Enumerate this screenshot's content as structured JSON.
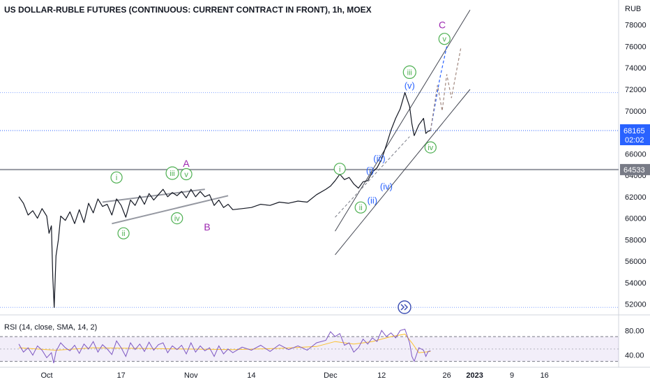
{
  "chart_data": {
    "type": "line",
    "title": "US DOLLAR-RUBLE FUTURES (CONTINUOUS: CURRENT CONTRACT IN FRONT), 1h, MOEX",
    "currency_label": "RUB",
    "y_ticks": [
      "78000",
      "76000",
      "74000",
      "72000",
      "70000",
      "68000",
      "66000",
      "64000",
      "62000",
      "60000",
      "58000",
      "56000",
      "54000",
      "52000"
    ],
    "ylim": [
      51200,
      79800
    ],
    "x_ticks": [
      {
        "label": "Oct",
        "day": 0
      },
      {
        "label": "17",
        "day": 16
      },
      {
        "label": "Nov",
        "day": 31
      },
      {
        "label": "14",
        "day": 44
      },
      {
        "label": "Dec",
        "day": 61
      },
      {
        "label": "12",
        "day": 72
      },
      {
        "label": "26",
        "day": 86
      },
      {
        "label": "2023",
        "day": 92
      },
      {
        "label": "9",
        "day": 100
      },
      {
        "label": "16",
        "day": 107
      }
    ],
    "current_price": {
      "value": "68165",
      "countdown": "02:02",
      "level": 68165
    },
    "marked_level": {
      "value": "64533",
      "level": 64533
    },
    "price_series": {
      "name": "",
      "points": [
        [
          -6,
          62000
        ],
        [
          -5,
          61400
        ],
        [
          -4,
          60300
        ],
        [
          -3,
          60700
        ],
        [
          -2,
          60000
        ],
        [
          -1,
          60900
        ],
        [
          0,
          60200
        ],
        [
          0.5,
          58600
        ],
        [
          1,
          59300
        ],
        [
          1.3,
          54500
        ],
        [
          1.6,
          51700
        ],
        [
          2,
          56500
        ],
        [
          2.5,
          58000
        ],
        [
          3,
          60200
        ],
        [
          4,
          59800
        ],
        [
          5,
          60600
        ],
        [
          6,
          59500
        ],
        [
          7,
          60800
        ],
        [
          8,
          59600
        ],
        [
          9,
          61400
        ],
        [
          10,
          60500
        ],
        [
          11,
          61800
        ],
        [
          12,
          61100
        ],
        [
          13,
          61300
        ],
        [
          14,
          60300
        ],
        [
          15,
          61800
        ],
        [
          16,
          61200
        ],
        [
          17,
          60100
        ],
        [
          18,
          61700
        ],
        [
          19,
          61200
        ],
        [
          20,
          62100
        ],
        [
          21,
          61300
        ],
        [
          22,
          62300
        ],
        [
          23,
          61700
        ],
        [
          24,
          62200
        ],
        [
          25,
          62700
        ],
        [
          26,
          62000
        ],
        [
          27,
          62400
        ],
        [
          28,
          62100
        ],
        [
          29,
          62500
        ],
        [
          30,
          61900
        ],
        [
          31,
          62700
        ],
        [
          32,
          62000
        ],
        [
          33,
          62500
        ],
        [
          34,
          62000
        ],
        [
          35,
          62200
        ],
        [
          36,
          61200
        ],
        [
          37,
          61700
        ],
        [
          38,
          61000
        ],
        [
          39,
          61300
        ],
        [
          40,
          60800
        ],
        [
          42,
          60900
        ],
        [
          44,
          61000
        ],
        [
          46,
          61300
        ],
        [
          48,
          61200
        ],
        [
          50,
          61500
        ],
        [
          52,
          61400
        ],
        [
          54,
          61600
        ],
        [
          56,
          61500
        ],
        [
          58,
          62200
        ],
        [
          60,
          62700
        ],
        [
          61,
          63000
        ],
        [
          62,
          63500
        ],
        [
          63,
          64100
        ],
        [
          64,
          63600
        ],
        [
          65,
          63800
        ],
        [
          66,
          63200
        ],
        [
          67,
          62800
        ],
        [
          68,
          63400
        ],
        [
          69,
          63500
        ],
        [
          70,
          64300
        ],
        [
          71,
          64700
        ],
        [
          72,
          65500
        ],
        [
          73,
          66800
        ],
        [
          74,
          68200
        ],
        [
          75,
          69300
        ],
        [
          76,
          70200
        ],
        [
          77,
          71700
        ],
        [
          78,
          70400
        ],
        [
          78.5,
          68800
        ],
        [
          79,
          67700
        ],
        [
          80,
          68700
        ],
        [
          81,
          69300
        ],
        [
          81.5,
          67900
        ],
        [
          82,
          68100
        ],
        [
          82.5,
          68165
        ]
      ]
    },
    "projections": [
      {
        "color": "#2962ff",
        "points": [
          [
            82.5,
            68165
          ],
          [
            84.5,
            73000
          ],
          [
            86,
            76000
          ]
        ]
      },
      {
        "color": "#a1887f",
        "points": [
          [
            82.5,
            68165
          ],
          [
            84,
            72400
          ],
          [
            85,
            70000
          ],
          [
            86,
            73400
          ],
          [
            87,
            71200
          ],
          [
            89,
            75800
          ]
        ]
      }
    ],
    "channel_lines": [
      {
        "points": [
          [
            62,
            58800
          ],
          [
            91,
            79400
          ]
        ]
      },
      {
        "points": [
          [
            62,
            56600
          ],
          [
            91,
            72000
          ]
        ]
      }
    ],
    "wedge_lines": [
      {
        "points": [
          [
            12,
            61500
          ],
          [
            34,
            62700
          ]
        ]
      },
      {
        "points": [
          [
            14,
            59500
          ],
          [
            39,
            62100
          ]
        ]
      }
    ],
    "dashed_trend": [
      [
        62,
        60100
      ],
      [
        78,
        67600
      ]
    ],
    "wave_labels": [
      {
        "text": "i",
        "day": 15,
        "price": 63800,
        "circled": true,
        "color": "#4caf50"
      },
      {
        "text": "ii",
        "day": 16.5,
        "price": 58600,
        "circled": true,
        "color": "#4caf50"
      },
      {
        "text": "iii",
        "day": 27,
        "price": 64200,
        "circled": true,
        "color": "#4caf50"
      },
      {
        "text": "iv",
        "day": 28,
        "price": 60000,
        "circled": true,
        "color": "#4caf50"
      },
      {
        "text": "v",
        "day": 30,
        "price": 64100,
        "circled": true,
        "color": "#4caf50"
      },
      {
        "text": "A",
        "day": 30,
        "price": 65100,
        "circled": false,
        "color": "#9c27b0"
      },
      {
        "text": "B",
        "day": 34.5,
        "price": 59200,
        "circled": false,
        "color": "#9c27b0"
      },
      {
        "text": "i",
        "day": 63,
        "price": 64600,
        "circled": true,
        "color": "#4caf50"
      },
      {
        "text": "ii",
        "day": 67.5,
        "price": 61000,
        "circled": true,
        "color": "#4caf50"
      },
      {
        "text": "(i)",
        "day": 69.5,
        "price": 64500,
        "circled": false,
        "color": "#2962ff"
      },
      {
        "text": "(ii)",
        "day": 70,
        "price": 61700,
        "circled": false,
        "color": "#2962ff"
      },
      {
        "text": "(iii)",
        "day": 71.5,
        "price": 65600,
        "circled": false,
        "color": "#2962ff"
      },
      {
        "text": "(iv)",
        "day": 73,
        "price": 63000,
        "circled": false,
        "color": "#2962ff"
      },
      {
        "text": "(v)",
        "day": 78,
        "price": 72400,
        "circled": false,
        "color": "#2962ff"
      },
      {
        "text": "iii",
        "day": 78,
        "price": 73600,
        "circled": true,
        "color": "#4caf50"
      },
      {
        "text": "iv",
        "day": 82.5,
        "price": 66600,
        "circled": true,
        "color": "#4caf50"
      },
      {
        "text": "v",
        "day": 85.5,
        "price": 76700,
        "circled": true,
        "color": "#4caf50"
      },
      {
        "text": "C",
        "day": 85,
        "price": 78000,
        "circled": false,
        "color": "#9c27b0"
      }
    ],
    "rsi": {
      "label": "RSI (14, close, SMA, 14, 2)",
      "ticks": [
        "80.00",
        "40.00"
      ],
      "ylim": [
        25,
        95
      ],
      "band": [
        30,
        70
      ],
      "mid": 50,
      "points": [
        [
          -6,
          58
        ],
        [
          -5,
          45
        ],
        [
          -4,
          52
        ],
        [
          -3,
          40
        ],
        [
          -2,
          55
        ],
        [
          -1,
          48
        ],
        [
          0,
          36
        ],
        [
          1,
          44
        ],
        [
          1.5,
          27
        ],
        [
          2,
          46
        ],
        [
          3,
          60
        ],
        [
          4,
          52
        ],
        [
          5,
          47
        ],
        [
          6,
          56
        ],
        [
          7,
          43
        ],
        [
          8,
          58
        ],
        [
          9,
          50
        ],
        [
          10,
          62
        ],
        [
          11,
          45
        ],
        [
          12,
          57
        ],
        [
          13,
          50
        ],
        [
          14,
          41
        ],
        [
          15,
          63
        ],
        [
          16,
          52
        ],
        [
          17,
          38
        ],
        [
          18,
          60
        ],
        [
          19,
          49
        ],
        [
          20,
          58
        ],
        [
          21,
          46
        ],
        [
          22,
          61
        ],
        [
          23,
          48
        ],
        [
          24,
          57
        ],
        [
          25,
          60
        ],
        [
          26,
          44
        ],
        [
          27,
          55
        ],
        [
          28,
          49
        ],
        [
          29,
          56
        ],
        [
          30,
          42
        ],
        [
          31,
          60
        ],
        [
          32,
          45
        ],
        [
          33,
          55
        ],
        [
          34,
          47
        ],
        [
          35,
          52
        ],
        [
          36,
          38
        ],
        [
          37,
          55
        ],
        [
          38,
          42
        ],
        [
          39,
          50
        ],
        [
          40,
          44
        ],
        [
          42,
          53
        ],
        [
          44,
          48
        ],
        [
          46,
          56
        ],
        [
          48,
          46
        ],
        [
          50,
          57
        ],
        [
          52,
          49
        ],
        [
          54,
          55
        ],
        [
          56,
          48
        ],
        [
          58,
          60
        ],
        [
          60,
          64
        ],
        [
          61,
          78
        ],
        [
          62,
          70
        ],
        [
          63,
          75
        ],
        [
          64,
          56
        ],
        [
          65,
          60
        ],
        [
          66,
          45
        ],
        [
          67,
          52
        ],
        [
          68,
          66
        ],
        [
          69,
          58
        ],
        [
          70,
          68
        ],
        [
          71,
          62
        ],
        [
          72,
          80
        ],
        [
          73,
          70
        ],
        [
          74,
          76
        ],
        [
          75,
          68
        ],
        [
          76,
          80
        ],
        [
          77,
          82
        ],
        [
          78,
          60
        ],
        [
          78.5,
          38
        ],
        [
          79,
          30
        ],
        [
          80,
          52
        ],
        [
          81,
          48
        ],
        [
          81.5,
          38
        ],
        [
          82,
          46
        ],
        [
          82.5,
          47
        ]
      ],
      "sma_points": [
        [
          -6,
          52
        ],
        [
          2,
          48
        ],
        [
          10,
          52
        ],
        [
          20,
          51
        ],
        [
          30,
          50
        ],
        [
          40,
          49
        ],
        [
          50,
          51
        ],
        [
          58,
          54
        ],
        [
          62,
          62
        ],
        [
          66,
          58
        ],
        [
          70,
          62
        ],
        [
          74,
          70
        ],
        [
          77,
          74
        ],
        [
          78.5,
          60
        ],
        [
          80,
          44
        ],
        [
          82.5,
          46
        ]
      ]
    },
    "icon": "fast-forward-circle-icon"
  }
}
